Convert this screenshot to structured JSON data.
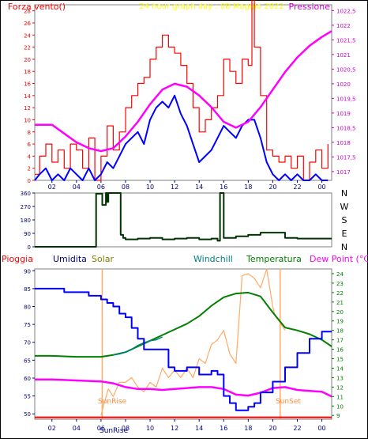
{
  "chart_data": [
    {
      "type": "line",
      "title": "24 hour graph day : 08 Maggio 2022",
      "left_label": "Forza vento()",
      "right_label": "Pressione",
      "x_ticks": [
        "02",
        "04",
        "06",
        "08",
        "10",
        "12",
        "14",
        "16",
        "18",
        "20",
        "22",
        "00"
      ],
      "y_left_ticks": [
        "0",
        "2",
        "4",
        "6",
        "8",
        "10",
        "12",
        "14",
        "16",
        "18",
        "20",
        "22",
        "24",
        "26",
        "28"
      ],
      "y_left_range": [
        0,
        29
      ],
      "y_right_ticks": [
        "1017",
        "1017,5",
        "1018",
        "1018,5",
        "1019",
        "1019,5",
        "1020",
        "1020,5",
        "1021",
        "1021,5",
        "1022",
        "1022,5"
      ],
      "y_right_range": [
        1016.7,
        1022.7
      ],
      "x_range_hours": [
        0.6,
        24.8
      ],
      "series": [
        {
          "name": "Forza vento",
          "color": "#ff0000",
          "x": [
            0.6,
            1,
            1.5,
            2,
            2.5,
            3,
            3.5,
            4,
            4.5,
            5,
            5.5,
            6,
            6.5,
            7,
            7.5,
            8,
            8.5,
            9,
            9.5,
            10,
            10.5,
            11,
            11.5,
            12,
            12.5,
            13,
            13.5,
            14,
            14.5,
            15,
            15.5,
            16,
            16.5,
            17,
            17.5,
            18,
            18.3,
            18.5,
            19,
            19.5,
            20,
            20.5,
            21,
            21.5,
            22,
            22.5,
            23,
            23.5,
            24,
            24.5
          ],
          "y": [
            1,
            4,
            6,
            3,
            5,
            2,
            6,
            5,
            2,
            7,
            0,
            4,
            9,
            5,
            8,
            12,
            14,
            16,
            17,
            20,
            22,
            24,
            22,
            21,
            19,
            16,
            12,
            8,
            10,
            12,
            14,
            20,
            18,
            16,
            20,
            19,
            30,
            22,
            14,
            5,
            4,
            3,
            4,
            2,
            4,
            0,
            3,
            5,
            2,
            6
          ]
        },
        {
          "name": "Gust",
          "color": "#0000ff",
          "x": [
            0.6,
            1,
            1.5,
            2,
            2.5,
            3,
            3.5,
            4,
            4.5,
            5,
            5.5,
            6,
            6.5,
            7,
            7.5,
            8,
            8.5,
            9,
            9.5,
            10,
            10.5,
            11,
            11.5,
            12,
            12.5,
            13,
            13.5,
            14,
            14.5,
            15,
            15.5,
            16,
            16.5,
            17,
            17.5,
            18,
            18.5,
            19,
            19.5,
            20,
            20.5,
            21,
            21.5,
            22,
            22.5,
            23,
            23.5,
            24,
            24.5
          ],
          "y": [
            0,
            1,
            2,
            0,
            1,
            0,
            2,
            1,
            0,
            2,
            0,
            1,
            3,
            2,
            4,
            6,
            7,
            8,
            6,
            10,
            12,
            13,
            12,
            14,
            11,
            9,
            6,
            3,
            4,
            5,
            7,
            9,
            8,
            7,
            9,
            10,
            10,
            7,
            3,
            1,
            0,
            1,
            0,
            1,
            0,
            0,
            1,
            0,
            0
          ]
        },
        {
          "name": "Pressione",
          "color": "#ff00ff",
          "x": [
            0.6,
            2,
            3,
            4,
            5,
            6,
            7,
            8,
            9,
            10,
            11,
            12,
            13,
            14,
            15,
            16,
            17,
            18,
            19,
            20,
            21,
            22,
            23,
            24,
            24.8
          ],
          "y": [
            1018.6,
            1018.6,
            1018.3,
            1018.0,
            1017.8,
            1017.7,
            1017.8,
            1018.2,
            1018.7,
            1019.3,
            1019.8,
            1020.0,
            1019.9,
            1019.6,
            1019.2,
            1018.7,
            1018.5,
            1018.7,
            1019.2,
            1019.8,
            1020.4,
            1020.9,
            1021.3,
            1021.6,
            1021.8
          ]
        }
      ]
    },
    {
      "type": "line",
      "title": "",
      "y_left_ticks": [
        "0",
        "90",
        "180",
        "270",
        "360"
      ],
      "y_left_range": [
        0,
        360
      ],
      "compass": [
        "N",
        "W",
        "S",
        "E",
        "N"
      ],
      "series": [
        {
          "name": "Direzione vento",
          "color": "#003300",
          "x": [
            0.6,
            5,
            5.5,
            5.6,
            6,
            6.1,
            6.4,
            6.5,
            6.6,
            7.5,
            7.6,
            7.8,
            8,
            9,
            10,
            11,
            12,
            13,
            14,
            15,
            15.5,
            15.7,
            16,
            17,
            18,
            19,
            20,
            21,
            22,
            23,
            24,
            24.8
          ],
          "y": [
            0,
            0,
            0,
            355,
            355,
            280,
            360,
            300,
            360,
            360,
            80,
            60,
            50,
            55,
            60,
            50,
            55,
            60,
            50,
            55,
            40,
            360,
            60,
            70,
            80,
            95,
            95,
            60,
            55,
            55,
            55,
            55
          ]
        }
      ]
    },
    {
      "type": "line",
      "title": "",
      "legend": [
        "Pioggia",
        "Umidita",
        "Solar",
        "Windchill",
        "Temperatura",
        "Dew Point (°C)"
      ],
      "legend_colors": [
        "#ff0000",
        "#000080",
        "#808000",
        "#008080",
        "#008000",
        "#ff00ff"
      ],
      "y_left_ticks": [
        "50",
        "55",
        "60",
        "65",
        "70",
        "75",
        "80",
        "85",
        "90"
      ],
      "y_left_range": [
        48.5,
        90.5
      ],
      "y_right_ticks": [
        "9",
        "10",
        "11",
        "12",
        "13",
        "14",
        "15",
        "16",
        "17",
        "18",
        "19",
        "20",
        "21",
        "22",
        "23",
        "24"
      ],
      "y_right_range": [
        8.6,
        24.5
      ],
      "x_ticks": [
        "02",
        "04",
        "06",
        "08",
        "10",
        "12",
        "14",
        "16",
        "18",
        "20",
        "22",
        "00"
      ],
      "annotations": [
        "SunRise",
        "SunSet"
      ],
      "series": [
        {
          "name": "Umidita",
          "color": "#0000ff",
          "x": [
            0.6,
            2,
            3,
            4,
            5,
            6,
            6.5,
            7,
            7.5,
            8,
            8.5,
            9,
            9.5,
            10,
            11,
            11.5,
            12,
            12.5,
            13,
            14,
            15,
            15.5,
            16,
            16.5,
            17,
            17.5,
            18,
            18.5,
            19,
            20,
            21,
            22,
            23,
            24,
            24.8
          ],
          "y": [
            85,
            85,
            84,
            84,
            83,
            82,
            81,
            80,
            78,
            77,
            74,
            71,
            68,
            68,
            68,
            63,
            62,
            62,
            63,
            61,
            62,
            61,
            55,
            53,
            51,
            51,
            52,
            53,
            56,
            59,
            63,
            67,
            71,
            73,
            73
          ]
        },
        {
          "name": "Temperatura",
          "color": "#008000",
          "x": [
            0.6,
            2,
            4,
            6,
            7,
            8,
            9,
            10,
            11,
            12,
            13,
            14,
            15,
            16,
            17,
            18,
            19,
            20,
            21,
            22,
            23,
            24,
            24.8
          ],
          "y": [
            15.3,
            15.3,
            15.2,
            15.2,
            15.4,
            15.7,
            16.3,
            16.9,
            17.5,
            18.1,
            18.7,
            19.5,
            20.6,
            21.5,
            21.9,
            22.0,
            21.6,
            19.9,
            18.3,
            18.0,
            17.6,
            17.0,
            16.3
          ]
        },
        {
          "name": "Windchill",
          "color": "#008080",
          "x": [
            7,
            7.5,
            8,
            8.5,
            9,
            9.5,
            10,
            10.5,
            11
          ],
          "y": [
            15.4,
            15.5,
            15.7,
            16.0,
            16.4,
            16.7,
            16.9,
            17.0,
            17.3
          ]
        },
        {
          "name": "Dew Point (°C)",
          "color": "#ff00ff",
          "x": [
            0.6,
            2,
            4,
            6,
            7,
            8,
            9,
            10,
            11,
            12,
            13,
            14,
            15,
            16,
            17,
            18,
            19,
            20,
            21,
            22,
            23,
            24,
            24.8
          ],
          "y": [
            12.8,
            12.8,
            12.7,
            12.6,
            12.4,
            12.0,
            11.8,
            11.8,
            11.7,
            11.8,
            11.9,
            12.0,
            12.0,
            11.8,
            11.2,
            11.1,
            11.4,
            11.9,
            12.0,
            11.7,
            11.6,
            11.5,
            11.0
          ]
        },
        {
          "name": "Solar",
          "color": "#ffaa66",
          "x": [
            6.0,
            6.3,
            6.6,
            7,
            7.5,
            8,
            8.5,
            9,
            9.5,
            10,
            10.5,
            11,
            11.5,
            12,
            12.5,
            13,
            13.5,
            14,
            14.5,
            15,
            15.5,
            16,
            16.5,
            17,
            17.5,
            18,
            18.5,
            19,
            19.5,
            20,
            20.2,
            20.5,
            21
          ],
          "y": [
            9,
            10.5,
            11.8,
            11,
            12.5,
            12.5,
            13,
            12,
            11.5,
            12.5,
            12,
            14,
            13,
            13.8,
            13,
            14,
            13,
            15,
            14.5,
            16.5,
            17,
            18,
            15.5,
            14.5,
            23.8,
            24,
            23.5,
            22.5,
            24.5,
            20.5,
            19.5,
            19,
            18
          ]
        },
        {
          "name": "Pioggia",
          "color": "#ff0000",
          "x": [
            0.6,
            24.8
          ],
          "y": [
            8.8,
            8.8
          ]
        }
      ]
    }
  ]
}
